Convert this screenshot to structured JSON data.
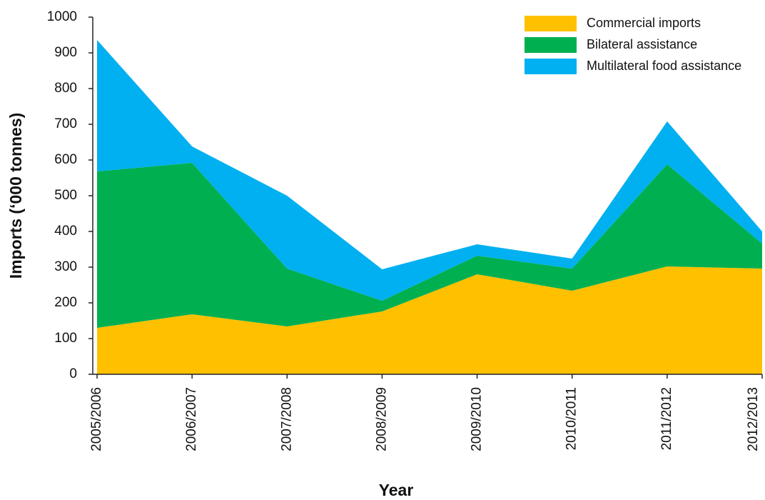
{
  "chart_data": {
    "type": "stacked-area",
    "x_label": "Year",
    "y_label": "Imports (‘000 tonnes)",
    "categories": [
      "2005/2006",
      "2006/2007",
      "2007/2008",
      "2008/2009",
      "2009/2010",
      "2010/2011",
      "2011/2012",
      "2012/2013"
    ],
    "series": [
      {
        "name": "Commercial imports",
        "color": "#ffc000",
        "values": [
          130,
          168,
          134,
          176,
          280,
          234,
          302,
          296
        ]
      },
      {
        "name": "Bilateral assistance",
        "color": "#00b050",
        "values": [
          438,
          424,
          162,
          30,
          52,
          62,
          286,
          70
        ]
      },
      {
        "name": "Multilateral food assistance",
        "color": "#00b0f0",
        "values": [
          368,
          46,
          204,
          88,
          32,
          28,
          120,
          34
        ]
      }
    ],
    "ylim": [
      0,
      1000
    ],
    "yticks": [
      0,
      100,
      200,
      300,
      400,
      500,
      600,
      700,
      800,
      900,
      1000
    ],
    "legend": "top-right"
  }
}
